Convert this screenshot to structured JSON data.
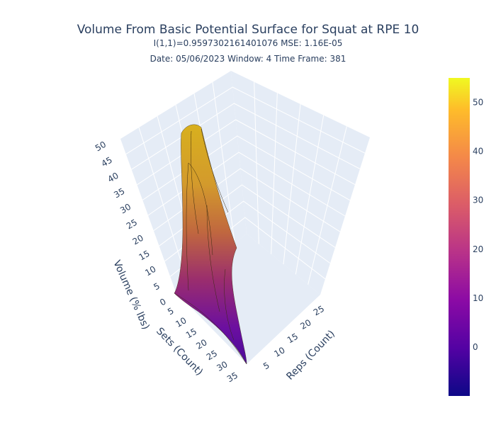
{
  "chart_data": {
    "type": "surface3d",
    "title": "Volume From Basic Potential Surface for Squat at RPE 10",
    "subtitle_line1": "I(1,1)=0.9597302161401076  MSE: 1.16E-05",
    "subtitle_line2": "Date: 05/06/2023  Window: 4  Time Frame: 381",
    "x_axis": {
      "label": "Reps (Count)",
      "ticks": [
        "5",
        "10",
        "15",
        "20",
        "25"
      ]
    },
    "y_axis": {
      "label": "Sets (Count)",
      "ticks": [
        "5",
        "10",
        "15",
        "20",
        "25",
        "30",
        "35"
      ]
    },
    "z_axis": {
      "label": "Volume (% lbs)",
      "ticks": [
        "0",
        "5",
        "10",
        "15",
        "20",
        "25",
        "30",
        "35",
        "40",
        "45",
        "50"
      ]
    },
    "colorbar": {
      "ticks": [
        "0",
        "10",
        "20",
        "30",
        "40",
        "50"
      ],
      "range": [
        -10,
        55
      ],
      "colorscale": "plasma"
    },
    "surface_peak": {
      "reps": 1,
      "sets": 12,
      "volume": 52
    },
    "colors": {
      "background": "#e5ecf6",
      "grid": "#ffffff",
      "text": "#2a3f5f"
    }
  }
}
